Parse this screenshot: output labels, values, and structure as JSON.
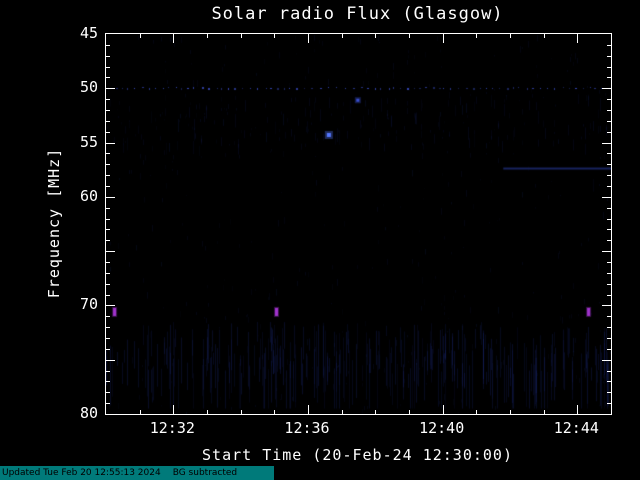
{
  "title": "Solar radio Flux (Glasgow)",
  "y_axis": {
    "label": "Frequency [MHz]",
    "min_mhz": 45,
    "max_mhz": 80,
    "major_ticks": [
      45,
      50,
      55,
      60,
      65,
      70,
      75,
      80
    ],
    "labeled_ticks": [
      45,
      50,
      55,
      60,
      70,
      80
    ]
  },
  "x_axis": {
    "label": "Start Time (20-Feb-24 12:30:00)",
    "start_offset_min": 0,
    "end_offset_min": 15,
    "major_ticks": [
      {
        "offset_min": 2,
        "label": "12:32"
      },
      {
        "offset_min": 6,
        "label": "12:36"
      },
      {
        "offset_min": 10,
        "label": "12:40"
      },
      {
        "offset_min": 14,
        "label": "12:44"
      }
    ],
    "minor_tick_every_min": 1
  },
  "footer": {
    "updated_text": "Updated Tue Feb 20 12:55:13 2024",
    "bg_text": "BG subtracted",
    "bar_color": "#007a7a",
    "text_color": "#000000"
  },
  "colors": {
    "background": "#000000",
    "frame": "#ffffff",
    "text": "#ffffff",
    "noise_faint": "rgba(40,60,160,",
    "noise_band": "rgba(32,50,148,"
  },
  "chart_data": {
    "type": "heatmap",
    "title": "Solar radio Flux (Glasgow)",
    "xlabel": "Start Time (20-Feb-24 12:30:00)",
    "ylabel": "Frequency [MHz]",
    "x_range_offset_min": [
      0,
      15
    ],
    "x_tick_labels": [
      "12:32",
      "12:36",
      "12:40",
      "12:44"
    ],
    "y_range_mhz": [
      45,
      80
    ],
    "y_inverted": true,
    "background_level": "black with faint blue vertical interference streaks",
    "features": [
      {
        "type": "dotted_hline",
        "freq_mhz": 50.0,
        "t0_min": 0,
        "t1_min": 15,
        "color": "#3c50d0",
        "note": "persistent dotted interference line at 50 MHz"
      },
      {
        "type": "band",
        "freq0_mhz": 71.5,
        "freq1_mhz": 79.5,
        "t0_min": 0,
        "t1_min": 15,
        "color": "#1c2a78",
        "note": "dense faint vertical striations across bottom band"
      },
      {
        "type": "band",
        "freq0_mhz": 50.5,
        "freq1_mhz": 58.5,
        "t0_min": 0,
        "t1_min": 15,
        "color": "#141f5a",
        "note": "sparse faint streaks below 50 MHz line"
      },
      {
        "type": "hline_segment",
        "freq_mhz": 57.3,
        "t0_min": 11.8,
        "t1_min": 15,
        "color": "#18235e",
        "note": "faint horizontal streak right side"
      },
      {
        "type": "point",
        "t_min": 6.62,
        "freq_mhz": 54.3,
        "color": "#5577ff",
        "size": 4,
        "note": "bright blue point ~12:36:37"
      },
      {
        "type": "point",
        "t_min": 7.48,
        "freq_mhz": 51.1,
        "color": "#3a4fd0",
        "size": 3,
        "note": "dim blue point ~12:37:29"
      },
      {
        "type": "burst",
        "t_min": 0.24,
        "freq_mhz": 70.6,
        "color": "#a033cc",
        "size": 5,
        "note": "purple burst ~12:30:14"
      },
      {
        "type": "burst",
        "t_min": 5.05,
        "freq_mhz": 70.6,
        "color": "#a033cc",
        "size": 5,
        "note": "purple burst ~12:35:03"
      },
      {
        "type": "burst",
        "t_min": 14.32,
        "freq_mhz": 70.6,
        "color": "#a033cc",
        "size": 5,
        "note": "purple burst ~12:44:19"
      }
    ]
  }
}
